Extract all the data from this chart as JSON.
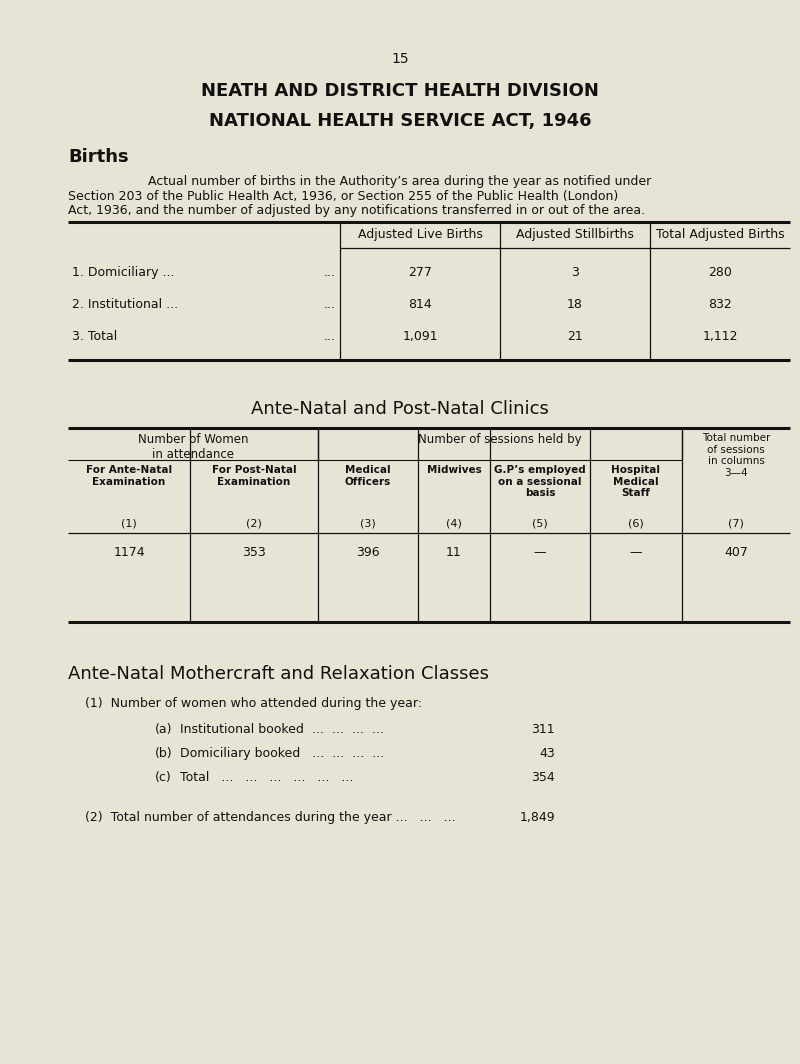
{
  "page_number": "15",
  "title1": "NEATH AND DISTRICT HEALTH DIVISION",
  "title2": "NATIONAL HEALTH SERVICE ACT, 1946",
  "section1_heading": "Births",
  "section1_body_line1": "Actual number of births in the Authority’s area during the year as notified under",
  "section1_body_line2": "Section 203 of the Public Health Act, 1936, or Section 255 of the Public Health (London)",
  "section1_body_line3": "Act, 1936, and the number of adjusted by any notifications transferred in or out of the area.",
  "births_col_headers": [
    "Adjusted Live Births",
    "Adjusted Stillbirths",
    "Total Adjusted Births"
  ],
  "births_rows": [
    [
      "1. Domiciliary ...",
      "...",
      "277",
      "3",
      "280"
    ],
    [
      "2. Institutional ...",
      "...",
      "814",
      "18",
      "832"
    ],
    [
      "3. Total",
      "...",
      "1,091",
      "21",
      "1,112"
    ]
  ],
  "section2_heading": "Ante-Natal and Post-Natal Clinics",
  "clinics_header_left": "Number of Women\nin attendance",
  "clinics_header_mid": "Number of sessions held by",
  "clinics_header_right": "Total number\nof sessions\nin columns\n3—4",
  "clinics_subheaders": [
    "For Ante-Natal\nExamination",
    "For Post-Natal\nExamination",
    "Medical\nOfficers",
    "Midwives",
    "G.P’s employed\non a sessional\nbasis",
    "Hospital\nMedical\nStaff"
  ],
  "clinics_col_nums": [
    "(1)",
    "(2)",
    "(3)",
    "(4)",
    "(5)",
    "(6)",
    "(7)"
  ],
  "clinics_data": [
    "1174",
    "353",
    "396",
    "11",
    "—",
    "—",
    "407"
  ],
  "section3_heading": "Ante-Natal Mothercraft and Relaxation Classes",
  "s3_item1": "(1)  Number of women who attended during the year:",
  "s3_a_label": "(a)",
  "s3_a_text": "Institutional booked  ...  ...  ...  ...",
  "s3_a_val": "311",
  "s3_b_label": "(b)",
  "s3_b_text": "Domiciliary booked   ...  ...  ...  ...",
  "s3_b_val": "43",
  "s3_c_label": "(c)",
  "s3_c_text": "Total   ...   ...   ...   ...   ...   ...",
  "s3_c_val": "354",
  "s3_item2": "(2)  Total number of attendances during the year ...   ...   ...",
  "s3_item2_val": "1,849",
  "bg_color": "#e8e4d5",
  "text_color": "#111111",
  "line_color": "#111111",
  "fig_w": 8.0,
  "fig_h": 10.64,
  "dpi": 100
}
